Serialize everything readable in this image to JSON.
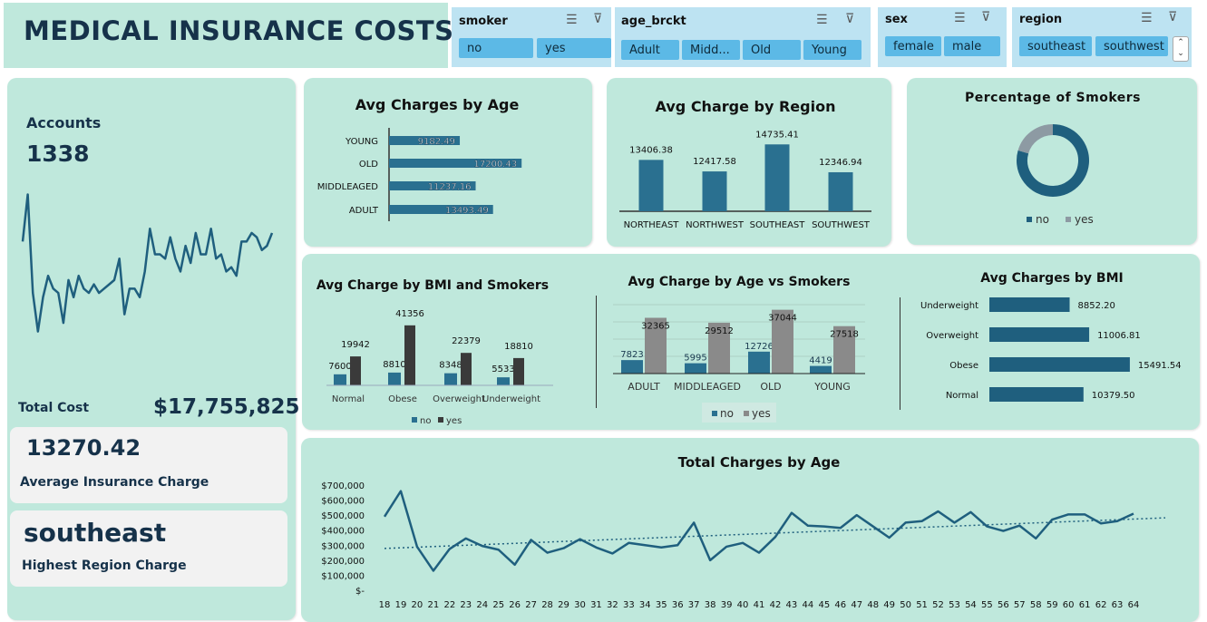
{
  "header": {
    "title": "MEDICAL INSURANCE COSTS"
  },
  "slicers": [
    {
      "title": "smoker",
      "items": [
        "no",
        "yes"
      ]
    },
    {
      "title": "age_brckt",
      "items": [
        "Adult",
        "Midd...",
        "Old",
        "Young"
      ]
    },
    {
      "title": "sex",
      "items": [
        "female",
        "male"
      ]
    },
    {
      "title": "region",
      "items": [
        "southeast",
        "southwest"
      ]
    }
  ],
  "kpi": {
    "accounts_label": "Accounts",
    "accounts_value": "1338",
    "total_cost_label": "Total Cost",
    "total_cost_value": "$17,755,825",
    "avg_charge_value": "13270.42",
    "avg_charge_label": "Average Insurance Charge",
    "top_region_value": "southeast",
    "top_region_label": "Highest Region Charge"
  },
  "colors": {
    "teal": "#2a7090",
    "dark_teal": "#1f5f7e",
    "gray": "#8a8a8a",
    "charcoal": "#3a3a3a",
    "card": "#bfe8dc"
  },
  "chart_data": [
    {
      "id": "avg_by_age",
      "type": "bar",
      "title": "Avg Charges by Age",
      "orientation": "horizontal",
      "categories": [
        "YOUNG",
        "OLD",
        "MIDDLEAGED",
        "ADULT"
      ],
      "values": [
        9182.49,
        17200.43,
        11237.16,
        13493.49
      ],
      "value_labels": [
        "9182.49",
        "17200.43",
        "11237.16",
        "13493.49"
      ],
      "xlim": [
        0,
        20000
      ]
    },
    {
      "id": "avg_by_region",
      "type": "bar",
      "title": "Avg Charge by Region",
      "categories": [
        "NORTHEAST",
        "NORTHWEST",
        "SOUTHEAST",
        "SOUTHWEST"
      ],
      "values": [
        13406.38,
        12417.58,
        14735.41,
        12346.94
      ],
      "value_labels": [
        "13406.38",
        "12417.58",
        "14735.41",
        "12346.94"
      ],
      "ylim": [
        9000,
        16000
      ]
    },
    {
      "id": "pct_smokers",
      "type": "pie",
      "title": "Percentage  of  Smokers",
      "categories": [
        "no",
        "yes"
      ],
      "values": [
        79.5,
        20.5
      ]
    },
    {
      "id": "bmi_smokers",
      "type": "bar",
      "title": "Avg Charge by BMI and Smokers",
      "categories": [
        "Normal",
        "Obese",
        "Overweight",
        "Underweight"
      ],
      "series": [
        {
          "name": "no",
          "values": [
            7600,
            8810,
            8348,
            5533
          ]
        },
        {
          "name": "yes",
          "values": [
            19942,
            41356,
            22379,
            18810
          ]
        }
      ],
      "value_labels": {
        "no": [
          "7600",
          "8810",
          "8348",
          "5533"
        ],
        "yes": [
          "19942",
          "41356",
          "22379",
          "18810"
        ]
      },
      "ylim": [
        0,
        45000
      ]
    },
    {
      "id": "age_smokers",
      "type": "bar",
      "title": "Avg Charge by Age vs Smokers",
      "categories": [
        "ADULT",
        "MIDDLEAGED",
        "OLD",
        "YOUNG"
      ],
      "series": [
        {
          "name": "no",
          "values": [
            7823,
            5995,
            12726,
            4419
          ]
        },
        {
          "name": "yes",
          "values": [
            32365,
            29512,
            37044,
            27518
          ]
        }
      ],
      "value_labels": {
        "no": [
          "7823",
          "5995",
          "12726",
          "4419"
        ],
        "yes": [
          "32365",
          "29512",
          "37044",
          "27518"
        ]
      },
      "ylim": [
        0,
        40000
      ],
      "grid": true
    },
    {
      "id": "avg_by_bmi",
      "type": "bar",
      "title": "Avg Charges by BMI",
      "orientation": "horizontal",
      "categories": [
        "Underweight",
        "Overweight",
        "Obese",
        "Normal"
      ],
      "values": [
        8852.2,
        11006.81,
        15491.54,
        10379.5
      ],
      "value_labels": [
        "8852.20",
        "11006.81",
        "15491.54",
        "10379.50"
      ],
      "xlim": [
        0,
        16000
      ]
    },
    {
      "id": "total_by_age",
      "type": "line",
      "title": "Total Charges by Age",
      "x": [
        18,
        19,
        20,
        21,
        22,
        23,
        24,
        25,
        26,
        27,
        28,
        29,
        30,
        31,
        32,
        33,
        34,
        35,
        36,
        37,
        38,
        39,
        40,
        41,
        42,
        43,
        44,
        45,
        46,
        47,
        48,
        49,
        50,
        51,
        52,
        53,
        54,
        55,
        56,
        57,
        58,
        59,
        60,
        61,
        62,
        63,
        64
      ],
      "values": [
        490000,
        660000,
        290000,
        130000,
        275000,
        345000,
        295000,
        270000,
        170000,
        335000,
        250000,
        280000,
        340000,
        285000,
        245000,
        315000,
        300000,
        285000,
        300000,
        450000,
        200000,
        290000,
        315000,
        250000,
        355000,
        515000,
        430000,
        425000,
        415000,
        500000,
        425000,
        350000,
        450000,
        460000,
        525000,
        450000,
        520000,
        425000,
        395000,
        430000,
        345000,
        470000,
        505000,
        505000,
        445000,
        460000,
        510000
      ],
      "trendline": "linear",
      "ytick_labels": [
        "$700,000",
        "$600,000",
        "$500,000",
        "$400,000",
        "$300,000",
        "$200,000",
        "$100,000",
        "$-"
      ],
      "ylim": [
        0,
        700000
      ]
    },
    {
      "id": "accounts_spark",
      "type": "line",
      "values": [
        265,
        210,
        325,
        370,
        330,
        305,
        320,
        325,
        360,
        310,
        330,
        305,
        320,
        325,
        315,
        325,
        320,
        315,
        310,
        285,
        350,
        320,
        320,
        330,
        300,
        250,
        280,
        280,
        285,
        260,
        285,
        300,
        270,
        290,
        255,
        280,
        280,
        250,
        285,
        280,
        300,
        295,
        305,
        265,
        265,
        255,
        260,
        275,
        270,
        255
      ]
    }
  ]
}
